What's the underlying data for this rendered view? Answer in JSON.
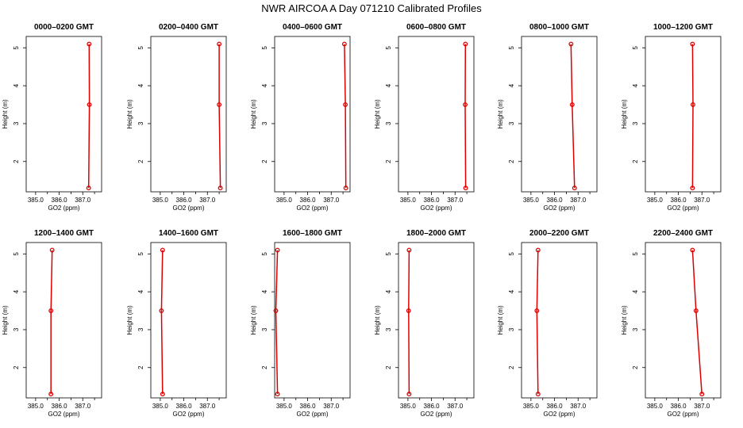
{
  "title": "NWR AIRCOA A  Day 071210  Calibrated Profiles",
  "chart_data": [
    {
      "type": "line",
      "title": "0000–0200 GMT",
      "xlabel": "GO2 (ppm)",
      "ylabel": "Height (m)",
      "xlim": [
        384.6,
        387.8
      ],
      "ylim": [
        1.2,
        5.3
      ],
      "x_ticks": [
        385.0,
        386.0,
        387.0
      ],
      "x_tick_labels": [
        "385.0",
        "386.0",
        "387.0"
      ],
      "y_ticks": [
        2,
        3,
        4,
        5
      ],
      "y_tick_labels": [
        "2",
        "3",
        "4",
        "5"
      ],
      "series": [
        {
          "x": [
            387.25,
            387.28,
            387.27
          ],
          "y": [
            1.3,
            3.5,
            5.1
          ]
        }
      ]
    },
    {
      "type": "line",
      "title": "0200–0400 GMT",
      "xlabel": "GO2 (ppm)",
      "ylabel": "Height (m)",
      "xlim": [
        384.6,
        387.8
      ],
      "ylim": [
        1.2,
        5.3
      ],
      "x_ticks": [
        385.0,
        386.0,
        387.0
      ],
      "x_tick_labels": [
        "385.0",
        "386.0",
        "387.0"
      ],
      "y_ticks": [
        2,
        3,
        4,
        5
      ],
      "y_tick_labels": [
        "2",
        "3",
        "4",
        "5"
      ],
      "series": [
        {
          "x": [
            387.55,
            387.5,
            387.5
          ],
          "y": [
            1.3,
            3.5,
            5.1
          ]
        }
      ]
    },
    {
      "type": "line",
      "title": "0400–0600 GMT",
      "xlabel": "GO2 (ppm)",
      "ylabel": "Height (m)",
      "xlim": [
        384.6,
        387.8
      ],
      "ylim": [
        1.2,
        5.3
      ],
      "x_ticks": [
        385.0,
        386.0,
        387.0
      ],
      "x_tick_labels": [
        "385.0",
        "386.0",
        "387.0"
      ],
      "y_ticks": [
        2,
        3,
        4,
        5
      ],
      "y_tick_labels": [
        "2",
        "3",
        "4",
        "5"
      ],
      "series": [
        {
          "x": [
            387.62,
            387.6,
            387.56
          ],
          "y": [
            1.3,
            3.5,
            5.1
          ]
        }
      ]
    },
    {
      "type": "line",
      "title": "0600–0800 GMT",
      "xlabel": "GO2 (ppm)",
      "ylabel": "Height (m)",
      "xlim": [
        384.6,
        387.8
      ],
      "ylim": [
        1.2,
        5.3
      ],
      "x_ticks": [
        385.0,
        386.0,
        387.0
      ],
      "x_tick_labels": [
        "385.0",
        "386.0",
        "387.0"
      ],
      "y_ticks": [
        2,
        3,
        4,
        5
      ],
      "y_tick_labels": [
        "2",
        "3",
        "4",
        "5"
      ],
      "series": [
        {
          "x": [
            387.45,
            387.43,
            387.44
          ],
          "y": [
            1.3,
            3.5,
            5.1
          ]
        }
      ]
    },
    {
      "type": "line",
      "title": "0800–1000 GMT",
      "xlabel": "GO2 (ppm)",
      "ylabel": "Height (m)",
      "xlim": [
        384.6,
        387.8
      ],
      "ylim": [
        1.2,
        5.3
      ],
      "x_ticks": [
        385.0,
        386.0,
        387.0
      ],
      "x_tick_labels": [
        "385.0",
        "386.0",
        "387.0"
      ],
      "y_ticks": [
        2,
        3,
        4,
        5
      ],
      "y_tick_labels": [
        "2",
        "3",
        "4",
        "5"
      ],
      "series": [
        {
          "x": [
            386.85,
            386.75,
            386.7
          ],
          "y": [
            1.3,
            3.5,
            5.1
          ]
        }
      ]
    },
    {
      "type": "line",
      "title": "1000–1200 GMT",
      "xlabel": "GO2 (ppm)",
      "ylabel": "Height (m)",
      "xlim": [
        384.6,
        387.8
      ],
      "ylim": [
        1.2,
        5.3
      ],
      "x_ticks": [
        385.0,
        386.0,
        387.0
      ],
      "x_tick_labels": [
        "385.0",
        "386.0",
        "387.0"
      ],
      "y_ticks": [
        2,
        3,
        4,
        5
      ],
      "y_tick_labels": [
        "2",
        "3",
        "4",
        "5"
      ],
      "series": [
        {
          "x": [
            386.6,
            386.62,
            386.6
          ],
          "y": [
            1.3,
            3.5,
            5.1
          ]
        }
      ]
    },
    {
      "type": "line",
      "title": "1200–1400 GMT",
      "xlabel": "GO2 (ppm)",
      "ylabel": "Height (m)",
      "xlim": [
        384.6,
        387.8
      ],
      "ylim": [
        1.2,
        5.3
      ],
      "x_ticks": [
        385.0,
        386.0,
        387.0
      ],
      "x_tick_labels": [
        "385.0",
        "386.0",
        "387.0"
      ],
      "y_ticks": [
        2,
        3,
        4,
        5
      ],
      "y_tick_labels": [
        "2",
        "3",
        "4",
        "5"
      ],
      "series": [
        {
          "x": [
            385.65,
            385.65,
            385.7
          ],
          "y": [
            1.3,
            3.5,
            5.1
          ]
        }
      ]
    },
    {
      "type": "line",
      "title": "1400–1600 GMT",
      "xlabel": "GO2 (ppm)",
      "ylabel": "Height (m)",
      "xlim": [
        384.6,
        387.8
      ],
      "ylim": [
        1.2,
        5.3
      ],
      "x_ticks": [
        385.0,
        386.0,
        387.0
      ],
      "x_tick_labels": [
        "385.0",
        "386.0",
        "387.0"
      ],
      "y_ticks": [
        2,
        3,
        4,
        5
      ],
      "y_tick_labels": [
        "2",
        "3",
        "4",
        "5"
      ],
      "series": [
        {
          "x": [
            385.1,
            385.05,
            385.1
          ],
          "y": [
            1.3,
            3.5,
            5.1
          ]
        }
      ]
    },
    {
      "type": "line",
      "title": "1600–1800 GMT",
      "xlabel": "GO2 (ppm)",
      "ylabel": "Height (m)",
      "xlim": [
        384.6,
        387.8
      ],
      "ylim": [
        1.2,
        5.3
      ],
      "x_ticks": [
        385.0,
        386.0,
        387.0
      ],
      "x_tick_labels": [
        "385.0",
        "386.0",
        "387.0"
      ],
      "y_ticks": [
        2,
        3,
        4,
        5
      ],
      "y_tick_labels": [
        "2",
        "3",
        "4",
        "5"
      ],
      "series": [
        {
          "x": [
            384.72,
            384.65,
            384.72
          ],
          "y": [
            1.3,
            3.5,
            5.1
          ]
        }
      ]
    },
    {
      "type": "line",
      "title": "1800–2000 GMT",
      "xlabel": "GO2 (ppm)",
      "ylabel": "Height (m)",
      "xlim": [
        384.6,
        387.8
      ],
      "ylim": [
        1.2,
        5.3
      ],
      "x_ticks": [
        385.0,
        386.0,
        387.0
      ],
      "x_tick_labels": [
        "385.0",
        "386.0",
        "387.0"
      ],
      "y_ticks": [
        2,
        3,
        4,
        5
      ],
      "y_tick_labels": [
        "2",
        "3",
        "4",
        "5"
      ],
      "series": [
        {
          "x": [
            385.05,
            385.03,
            385.05
          ],
          "y": [
            1.3,
            3.5,
            5.1
          ]
        }
      ]
    },
    {
      "type": "line",
      "title": "2000–2200 GMT",
      "xlabel": "GO2 (ppm)",
      "ylabel": "Height (m)",
      "xlim": [
        384.6,
        387.8
      ],
      "ylim": [
        1.2,
        5.3
      ],
      "x_ticks": [
        385.0,
        386.0,
        387.0
      ],
      "x_tick_labels": [
        "385.0",
        "386.0",
        "387.0"
      ],
      "y_ticks": [
        2,
        3,
        4,
        5
      ],
      "y_tick_labels": [
        "2",
        "3",
        "4",
        "5"
      ],
      "series": [
        {
          "x": [
            385.3,
            385.25,
            385.3
          ],
          "y": [
            1.3,
            3.5,
            5.1
          ]
        }
      ]
    },
    {
      "type": "line",
      "title": "2200–2400 GMT",
      "xlabel": "GO2 (ppm)",
      "ylabel": "Height (m)",
      "xlim": [
        384.6,
        387.8
      ],
      "ylim": [
        1.2,
        5.3
      ],
      "x_ticks": [
        385.0,
        386.0,
        387.0
      ],
      "x_tick_labels": [
        "385.0",
        "386.0",
        "387.0"
      ],
      "y_ticks": [
        2,
        3,
        4,
        5
      ],
      "y_tick_labels": [
        "2",
        "3",
        "4",
        "5"
      ],
      "series": [
        {
          "x": [
            387.0,
            386.75,
            386.6
          ],
          "y": [
            1.3,
            3.5,
            5.1
          ]
        }
      ]
    }
  ]
}
